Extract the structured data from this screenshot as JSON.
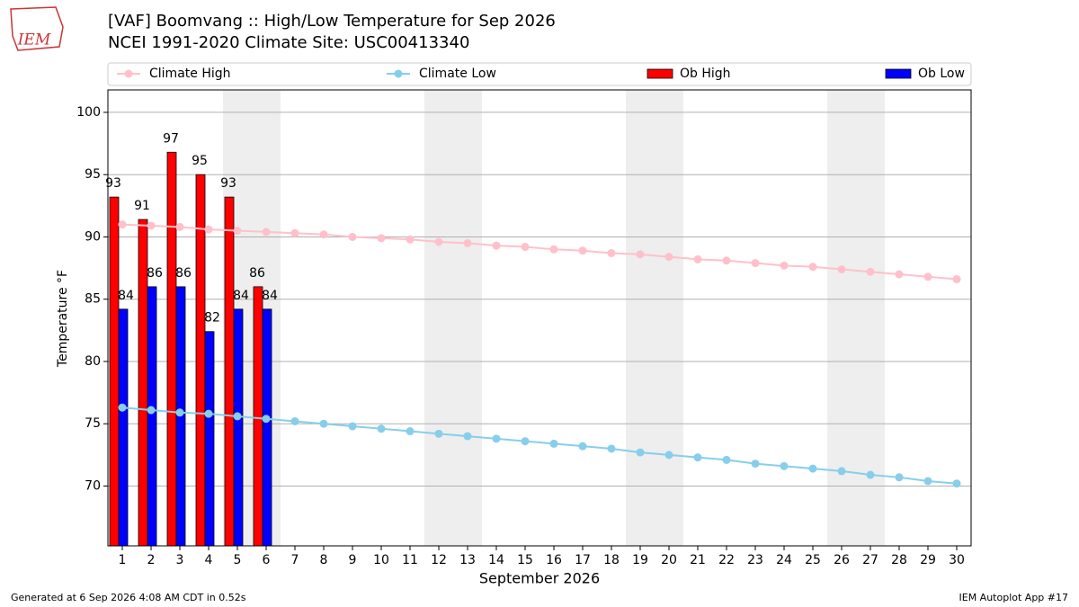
{
  "logo": "IEM",
  "footer_left": "Generated at 6 Sep 2026 4:08 AM CDT in 0.52s",
  "footer_right": "IEM Autoplot App #17",
  "chart_data": {
    "type": "bar",
    "title": "[VAF] Boomvang :: High/Low Temperature for Sep 2026",
    "subtitle": "NCEI 1991-2020 Climate Site: USC00413340",
    "x_label": "September 2026",
    "y_label": "Temperature °F",
    "x": [
      1,
      2,
      3,
      4,
      5,
      6,
      7,
      8,
      9,
      10,
      11,
      12,
      13,
      14,
      15,
      16,
      17,
      18,
      19,
      20,
      21,
      22,
      23,
      24,
      25,
      26,
      27,
      28,
      29,
      30
    ],
    "xlim": [
      0.5,
      30.5
    ],
    "xticks": [
      1,
      2,
      3,
      4,
      5,
      6,
      7,
      8,
      9,
      10,
      11,
      12,
      13,
      14,
      15,
      16,
      17,
      18,
      19,
      20,
      21,
      22,
      23,
      24,
      25,
      26,
      27,
      28,
      29,
      30
    ],
    "ylim": [
      65.2,
      101.8
    ],
    "yticks": [
      70,
      75,
      80,
      85,
      90,
      95,
      100
    ],
    "grid": true,
    "weekend_days": [
      5,
      6,
      12,
      13,
      19,
      20,
      26,
      27
    ],
    "weekend_color": "#eeeeee",
    "series": [
      {
        "name": "Climate High",
        "kind": "line",
        "color": "#ffc0cb",
        "values": [
          91.0,
          90.9,
          90.8,
          90.6,
          90.5,
          90.4,
          90.3,
          90.2,
          90.0,
          89.9,
          89.8,
          89.6,
          89.5,
          89.3,
          89.2,
          89.0,
          88.9,
          88.7,
          88.6,
          88.4,
          88.2,
          88.1,
          87.9,
          87.7,
          87.6,
          87.4,
          87.2,
          87.0,
          86.8,
          86.6
        ]
      },
      {
        "name": "Climate Low",
        "kind": "line",
        "color": "#87ceeb",
        "values": [
          76.3,
          76.1,
          75.9,
          75.8,
          75.6,
          75.4,
          75.2,
          75.0,
          74.8,
          74.6,
          74.4,
          74.2,
          74.0,
          73.8,
          73.6,
          73.4,
          73.2,
          73.0,
          72.7,
          72.5,
          72.3,
          72.1,
          71.8,
          71.6,
          71.4,
          71.2,
          70.9,
          70.7,
          70.4,
          70.2
        ]
      },
      {
        "name": "Ob High",
        "kind": "bar",
        "color": "#ff0000",
        "values": [
          93.2,
          91.4,
          96.8,
          95.0,
          93.2,
          86.0,
          null,
          null,
          null,
          null,
          null,
          null,
          null,
          null,
          null,
          null,
          null,
          null,
          null,
          null,
          null,
          null,
          null,
          null,
          null,
          null,
          null,
          null,
          null,
          null
        ],
        "value_labels": [
          "93",
          "91",
          "97",
          "95",
          "93",
          "86",
          null,
          null,
          null,
          null,
          null,
          null,
          null,
          null,
          null,
          null,
          null,
          null,
          null,
          null,
          null,
          null,
          null,
          null,
          null,
          null,
          null,
          null,
          null,
          null
        ]
      },
      {
        "name": "Ob Low",
        "kind": "bar",
        "color": "#0000ff",
        "values": [
          84.2,
          86.0,
          86.0,
          82.4,
          84.2,
          84.2,
          null,
          null,
          null,
          null,
          null,
          null,
          null,
          null,
          null,
          null,
          null,
          null,
          null,
          null,
          null,
          null,
          null,
          null,
          null,
          null,
          null,
          null,
          null,
          null
        ],
        "value_labels": [
          "84",
          "86",
          "86",
          "82",
          "84",
          "84",
          null,
          null,
          null,
          null,
          null,
          null,
          null,
          null,
          null,
          null,
          null,
          null,
          null,
          null,
          null,
          null,
          null,
          null,
          null,
          null,
          null,
          null,
          null,
          null
        ]
      }
    ]
  }
}
